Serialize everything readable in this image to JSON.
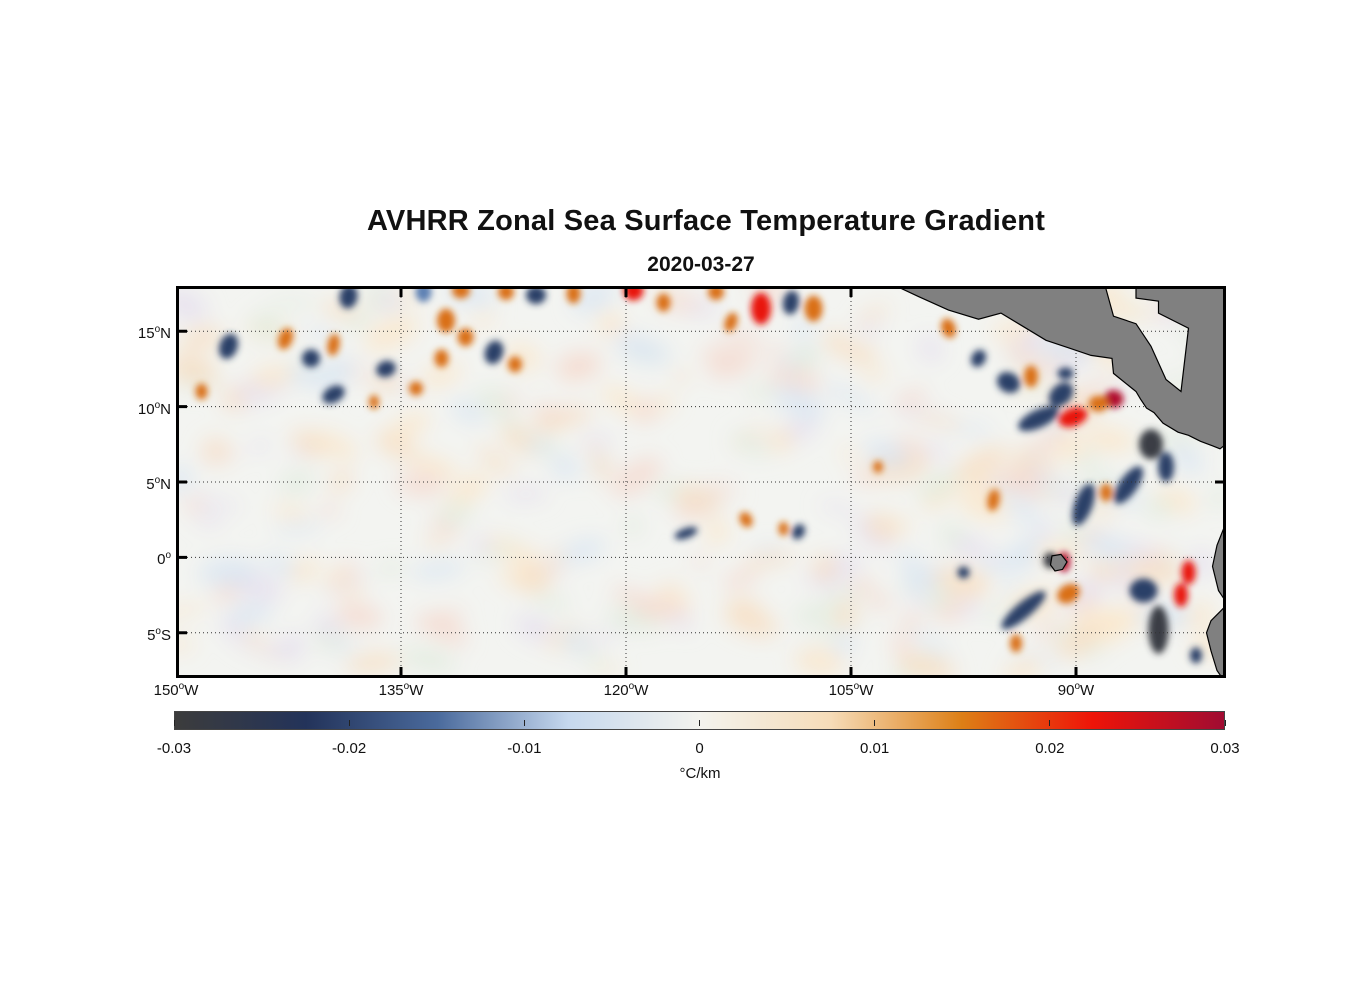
{
  "title": "AVHRR Zonal Sea Surface Temperature Gradient",
  "subtitle": "2020-03-27",
  "map": {
    "lon_range": [
      -150,
      -80
    ],
    "lat_range": [
      -8,
      18
    ],
    "lat_ticks": [
      {
        "value": 15,
        "num": "15",
        "hemi": "N"
      },
      {
        "value": 10,
        "num": "10",
        "hemi": "N"
      },
      {
        "value": 5,
        "num": "5",
        "hemi": "N"
      },
      {
        "value": 0,
        "num": "0",
        "hemi": ""
      },
      {
        "value": -5,
        "num": "5",
        "hemi": "S"
      }
    ],
    "lon_ticks": [
      {
        "value": -150,
        "num": "150",
        "hemi": "W"
      },
      {
        "value": -135,
        "num": "135",
        "hemi": "W"
      },
      {
        "value": -120,
        "num": "120",
        "hemi": "W"
      },
      {
        "value": -105,
        "num": "105",
        "hemi": "W"
      },
      {
        "value": -90,
        "num": "90",
        "hemi": "W"
      }
    ],
    "land_color": "#808080",
    "grid": "dotted"
  },
  "colorbar": {
    "min": -0.03,
    "max": 0.03,
    "tick_labels": [
      "-0.03",
      "-0.02",
      "-0.01",
      "0",
      "0.01",
      "0.02",
      "0.03"
    ],
    "unit": "°C/km",
    "colors": [
      "#3c3c3c",
      "#23335a",
      "#4a6a9c",
      "#c6d8ee",
      "#f3f3ee",
      "#f6dcb8",
      "#dd7f16",
      "#ee1408",
      "#a00c32"
    ]
  }
}
